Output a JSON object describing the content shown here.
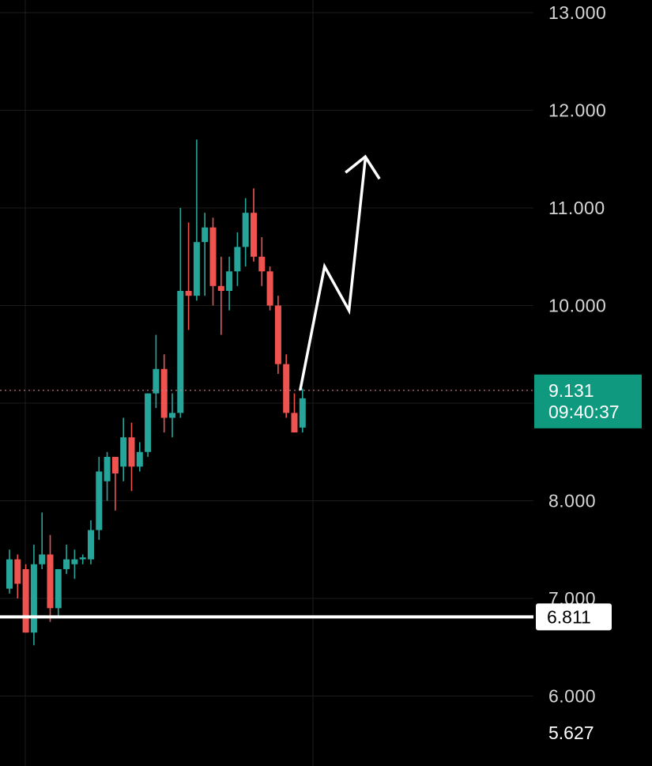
{
  "chart_data": {
    "type": "candlestick",
    "title": "",
    "xlabel": "",
    "ylabel": "",
    "ylim": [
      5.627,
      13.0
    ],
    "y_ticks": [
      "13.000",
      "12.000",
      "11.000",
      "10.000",
      "8.000",
      "7.000",
      "6.000"
    ],
    "grid": true,
    "colors": {
      "up": "#26a69a",
      "down": "#ef5350",
      "background": "#000000",
      "grid": "#1c1c1c",
      "current_price_label": "#0f9a80",
      "projection": "#ffffff"
    },
    "current_price": {
      "value": 9.131,
      "label": "9.131",
      "countdown": "09:40:37"
    },
    "support_line": {
      "value": 6.811,
      "label": "6.811"
    },
    "low_price_label": "5.627",
    "candles": [
      {
        "o": 7.1,
        "h": 7.5,
        "l": 7.05,
        "c": 7.4
      },
      {
        "o": 7.4,
        "h": 7.45,
        "l": 7.0,
        "c": 7.15
      },
      {
        "o": 7.3,
        "h": 7.35,
        "l": 6.65,
        "c": 6.65
      },
      {
        "o": 6.65,
        "h": 7.55,
        "l": 6.52,
        "c": 7.35
      },
      {
        "o": 7.35,
        "h": 7.88,
        "l": 7.3,
        "c": 7.45
      },
      {
        "o": 7.45,
        "h": 7.65,
        "l": 6.76,
        "c": 6.9
      },
      {
        "o": 6.9,
        "h": 7.3,
        "l": 6.8,
        "c": 7.3
      },
      {
        "o": 7.3,
        "h": 7.55,
        "l": 7.25,
        "c": 7.4
      },
      {
        "o": 7.35,
        "h": 7.5,
        "l": 7.2,
        "c": 7.4
      },
      {
        "o": 7.4,
        "h": 7.45,
        "l": 7.35,
        "c": 7.42
      },
      {
        "o": 7.4,
        "h": 7.8,
        "l": 7.35,
        "c": 7.7
      },
      {
        "o": 7.7,
        "h": 8.45,
        "l": 7.6,
        "c": 8.3
      },
      {
        "o": 8.2,
        "h": 8.5,
        "l": 8.0,
        "c": 8.45
      },
      {
        "o": 8.45,
        "h": 8.4,
        "l": 7.9,
        "c": 8.28
      },
      {
        "o": 8.35,
        "h": 8.85,
        "l": 8.2,
        "c": 8.65
      },
      {
        "o": 8.65,
        "h": 8.8,
        "l": 8.1,
        "c": 8.35
      },
      {
        "o": 8.35,
        "h": 8.6,
        "l": 8.3,
        "c": 8.5
      },
      {
        "o": 8.5,
        "h": 9.1,
        "l": 8.45,
        "c": 9.1
      },
      {
        "o": 9.1,
        "h": 9.7,
        "l": 8.95,
        "c": 9.35
      },
      {
        "o": 9.35,
        "h": 9.5,
        "l": 8.7,
        "c": 8.85
      },
      {
        "o": 8.85,
        "h": 9.1,
        "l": 8.65,
        "c": 8.9
      },
      {
        "o": 8.9,
        "h": 11.0,
        "l": 8.85,
        "c": 10.15
      },
      {
        "o": 10.15,
        "h": 10.85,
        "l": 9.75,
        "c": 10.1
      },
      {
        "o": 10.1,
        "h": 11.7,
        "l": 10.05,
        "c": 10.65
      },
      {
        "o": 10.65,
        "h": 10.95,
        "l": 10.1,
        "c": 10.8
      },
      {
        "o": 10.8,
        "h": 10.9,
        "l": 10.0,
        "c": 10.2
      },
      {
        "o": 10.2,
        "h": 10.5,
        "l": 9.7,
        "c": 10.15
      },
      {
        "o": 10.15,
        "h": 10.5,
        "l": 9.95,
        "c": 10.35
      },
      {
        "o": 10.35,
        "h": 10.75,
        "l": 10.2,
        "c": 10.6
      },
      {
        "o": 10.6,
        "h": 11.1,
        "l": 10.4,
        "c": 10.95
      },
      {
        "o": 10.95,
        "h": 11.2,
        "l": 10.45,
        "c": 10.5
      },
      {
        "o": 10.5,
        "h": 10.7,
        "l": 10.2,
        "c": 10.35
      },
      {
        "o": 10.35,
        "h": 10.4,
        "l": 9.95,
        "c": 10.0
      },
      {
        "o": 10.0,
        "h": 10.1,
        "l": 9.3,
        "c": 9.4
      },
      {
        "o": 9.4,
        "h": 9.5,
        "l": 8.85,
        "c": 8.9
      },
      {
        "o": 8.9,
        "h": 9.1,
        "l": 8.7,
        "c": 8.7
      },
      {
        "o": 8.75,
        "h": 9.15,
        "l": 8.7,
        "c": 9.05
      }
    ],
    "projection_path": [
      {
        "index": 36,
        "y": 9.131
      },
      {
        "index": 39,
        "y": 10.4
      },
      {
        "index": 42,
        "y": 9.95
      },
      {
        "index": 44,
        "y": 11.5
      }
    ]
  }
}
